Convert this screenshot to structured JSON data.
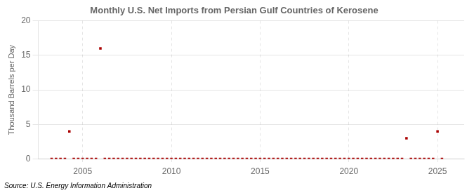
{
  "chart_data": {
    "type": "scatter",
    "title": "Monthly U.S. Net Imports from Persian Gulf Countries of Kerosene",
    "ylabel": "Thousand Barrels per Day",
    "source": "Source: U.S. Energy Information Administration",
    "color": "#aa0000",
    "marker": "square",
    "grid": true,
    "xlim": [
      2002.5,
      2026.5
    ],
    "ylim": [
      0,
      20
    ],
    "xticks": [
      2005,
      2010,
      2015,
      2020,
      2025
    ],
    "yticks": [
      0,
      5,
      10,
      15,
      20
    ],
    "x": [
      2003.25,
      2003.5,
      2003.75,
      2004.0,
      2004.25,
      2004.5,
      2004.75,
      2005.0,
      2005.25,
      2005.5,
      2005.75,
      2006.0,
      2006.25,
      2006.5,
      2006.75,
      2007.0,
      2007.25,
      2007.5,
      2007.75,
      2008.0,
      2008.25,
      2008.5,
      2008.75,
      2009.0,
      2009.25,
      2009.5,
      2009.75,
      2010.0,
      2010.25,
      2010.5,
      2010.75,
      2011.0,
      2011.25,
      2011.5,
      2011.75,
      2012.0,
      2012.25,
      2012.5,
      2012.75,
      2013.0,
      2013.25,
      2013.5,
      2013.75,
      2014.0,
      2014.25,
      2014.5,
      2014.75,
      2015.0,
      2015.25,
      2015.5,
      2015.75,
      2016.0,
      2016.25,
      2016.5,
      2016.75,
      2017.0,
      2017.25,
      2017.5,
      2017.75,
      2018.0,
      2018.25,
      2018.5,
      2018.75,
      2019.0,
      2019.25,
      2019.5,
      2019.75,
      2020.0,
      2020.25,
      2020.5,
      2020.75,
      2021.0,
      2021.25,
      2021.5,
      2021.75,
      2022.0,
      2022.25,
      2022.5,
      2022.75,
      2023.0,
      2023.25,
      2023.5,
      2023.75,
      2024.0,
      2024.25,
      2024.5,
      2024.75,
      2025.0,
      2025.25
    ],
    "values": [
      0.0,
      0.0,
      0.0,
      0.0,
      4.0,
      0.0,
      0.0,
      0.0,
      0.0,
      0.0,
      0.0,
      16.0,
      0.0,
      0.0,
      0.0,
      0.0,
      0.0,
      0.0,
      0.0,
      0.0,
      0.0,
      0.0,
      0.0,
      0.0,
      0.0,
      0.0,
      0.0,
      0.0,
      0.0,
      0.0,
      0.0,
      0.0,
      0.0,
      0.0,
      0.0,
      0.0,
      0.0,
      0.0,
      0.0,
      0.0,
      0.0,
      0.0,
      0.0,
      0.0,
      0.0,
      0.0,
      0.0,
      0.0,
      0.0,
      0.0,
      0.0,
      0.0,
      0.0,
      0.0,
      0.0,
      0.0,
      0.0,
      0.0,
      0.0,
      0.0,
      0.0,
      0.0,
      0.0,
      0.0,
      0.0,
      0.0,
      0.0,
      0.0,
      0.0,
      0.0,
      0.0,
      0.0,
      0.0,
      0.0,
      0.0,
      0.0,
      0.0,
      0.0,
      0.0,
      0.0,
      3.0,
      0.0,
      0.0,
      0.0,
      0.0,
      0.0,
      0.0,
      4.0,
      0.0
    ]
  }
}
